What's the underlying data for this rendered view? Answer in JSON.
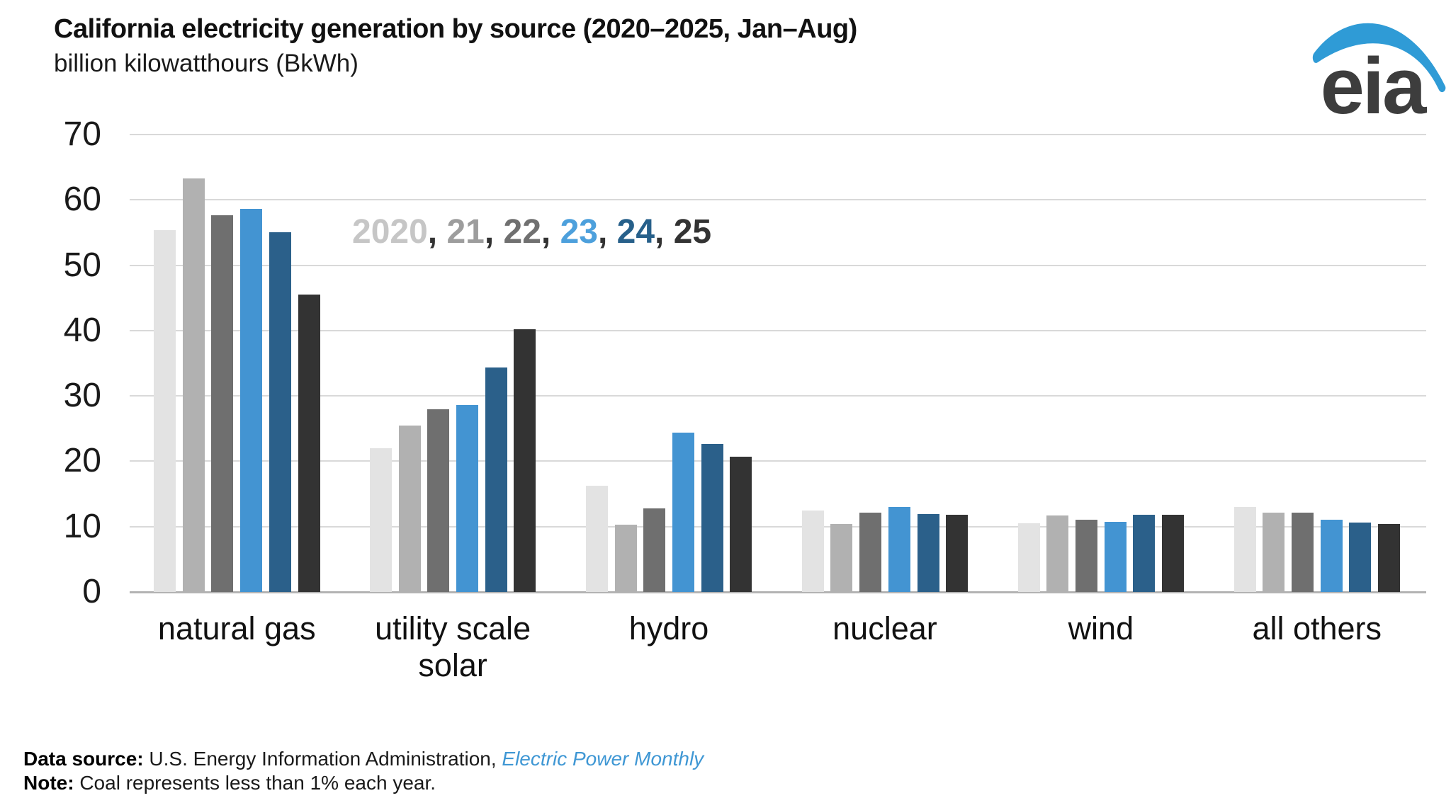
{
  "header": {
    "title": "California electricity generation by source (2020–2025, Jan–Aug)",
    "subtitle": "billion kilowatthours (BkWh)"
  },
  "logo": {
    "text": "eia",
    "swoosh_color": "#2f9bd6",
    "text_color": "#3d3d3d"
  },
  "chart_data": {
    "type": "bar",
    "title": "California electricity generation by source (2020–2025, Jan–Aug)",
    "ylabel": "billion kilowatthours (BkWh)",
    "categories": [
      "natural gas",
      "utility scale\nsolar",
      "hydro",
      "nuclear",
      "wind",
      "all others"
    ],
    "series": [
      {
        "name": "2020",
        "color": "#e3e3e3",
        "legend_color": "#c6c6c6",
        "values": [
          55.4,
          22.0,
          16.3,
          12.5,
          10.5,
          13.0
        ]
      },
      {
        "name": "21",
        "color": "#b1b1b1",
        "legend_color": "#9d9d9d",
        "values": [
          63.3,
          25.5,
          10.3,
          10.4,
          11.7,
          12.1
        ]
      },
      {
        "name": "22",
        "color": "#6f6f6f",
        "legend_color": "#707070",
        "values": [
          57.7,
          28.0,
          12.8,
          12.1,
          11.1,
          12.1
        ]
      },
      {
        "name": "23",
        "color": "#4394d2",
        "legend_color": "#4da0dc",
        "values": [
          58.6,
          28.6,
          24.4,
          13.0,
          10.7,
          11.1
        ]
      },
      {
        "name": "24",
        "color": "#2b608a",
        "legend_color": "#27608a",
        "values": [
          55.0,
          34.4,
          22.7,
          11.9,
          11.8,
          10.6
        ]
      },
      {
        "name": "25",
        "color": "#333333",
        "legend_color": "#333333",
        "values": [
          45.5,
          40.2,
          20.7,
          11.8,
          11.8,
          10.4
        ]
      }
    ],
    "ylim": [
      0,
      70
    ],
    "yticks": [
      0,
      10,
      20,
      30,
      40,
      50,
      60,
      70
    ],
    "grid": "horizontal",
    "legend_text": [
      "2020",
      "21",
      "22",
      "23",
      "24",
      "25"
    ],
    "legend_separator": ", ",
    "legend_position": "inside-plot-upper-left",
    "gridline_color": "#d9d9d9",
    "axis_line_color": "#b3b3b3"
  },
  "footer": {
    "source_label": "Data source:",
    "source_text": " U.S. Energy Information Administration, ",
    "source_link": "Electric Power Monthly",
    "note_label": "Note:",
    "note_text": " Coal represents less than 1% each year."
  }
}
